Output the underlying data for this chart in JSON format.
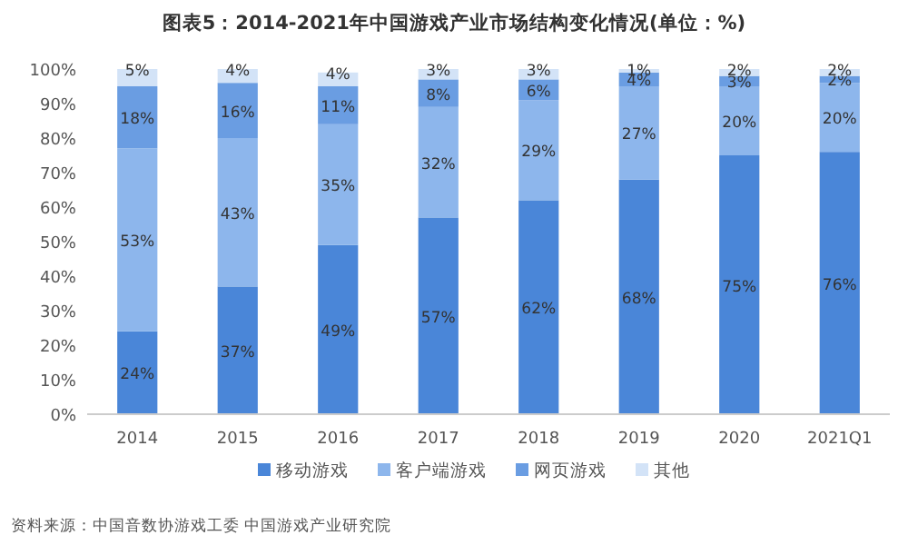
{
  "chart_data": {
    "type": "bar",
    "stacked": true,
    "title": "图表5：2014-2021年中国游戏产业市场结构变化情况(单位：%)",
    "categories": [
      "2014",
      "2015",
      "2016",
      "2017",
      "2018",
      "2019",
      "2020",
      "2021Q1"
    ],
    "series": [
      {
        "name": "移动游戏",
        "color": "#4a86d8",
        "values": [
          24,
          37,
          49,
          57,
          62,
          68,
          75,
          76
        ],
        "value_labels": [
          "24%",
          "37%",
          "49%",
          "57%",
          "62%",
          "68%",
          "75%",
          "76%"
        ]
      },
      {
        "name": "客户端游戏",
        "color": "#8db6ec",
        "values": [
          53,
          43,
          35,
          32,
          29,
          27,
          20,
          20
        ],
        "value_labels": [
          "53%",
          "43%",
          "35%",
          "32%",
          "29%",
          "27%",
          "20%",
          "20%"
        ]
      },
      {
        "name": "网页游戏",
        "color": "#6a9de2",
        "values": [
          18,
          16,
          11,
          8,
          6,
          4,
          3,
          2
        ],
        "value_labels": [
          "18%",
          "16%",
          "11%",
          "8%",
          "6%",
          "4%",
          "3%",
          "2%"
        ]
      },
      {
        "name": "其他",
        "color": "#d3e3f7",
        "values": [
          5,
          4,
          4,
          3,
          3,
          1,
          2,
          2
        ],
        "value_labels": [
          "5%",
          "4%",
          "4%",
          "3%",
          "3%",
          "1%",
          "2%",
          "2%"
        ]
      }
    ],
    "ylim": [
      0,
      100
    ],
    "yticks": [
      {
        "value": 0,
        "label": "0%"
      },
      {
        "value": 10,
        "label": "10%"
      },
      {
        "value": 20,
        "label": "20%"
      },
      {
        "value": 30,
        "label": "30%"
      },
      {
        "value": 40,
        "label": "40%"
      },
      {
        "value": 50,
        "label": "50%"
      },
      {
        "value": 60,
        "label": "60%"
      },
      {
        "value": 70,
        "label": "70%"
      },
      {
        "value": 80,
        "label": "80%"
      },
      {
        "value": 90,
        "label": "90%"
      },
      {
        "value": 100,
        "label": "100%"
      }
    ],
    "grid": false,
    "legend": "bottom",
    "annotations": [
      "资料来源：中国音数协游戏工委 中国游戏产业研究院"
    ]
  }
}
